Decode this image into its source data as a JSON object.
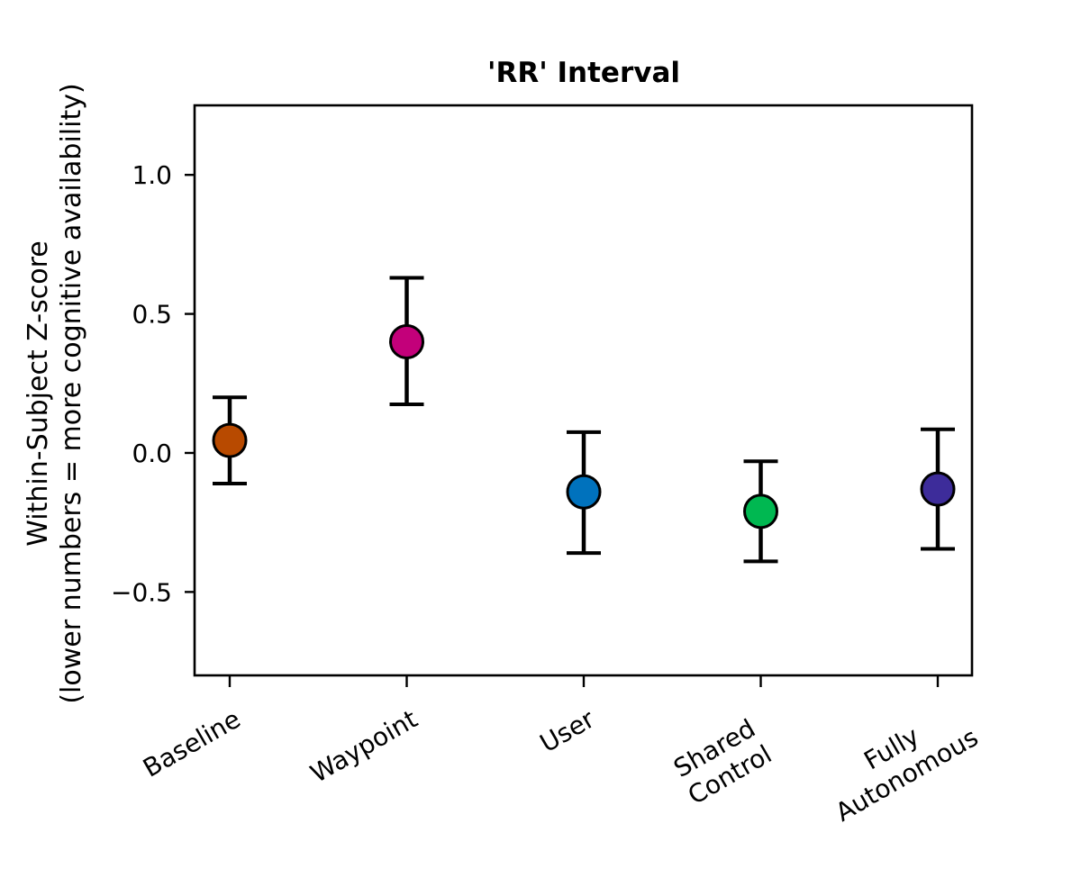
{
  "chart_data": {
    "type": "scatter",
    "title": "'RR' Interval",
    "ylabel_lines": [
      "Within-Subject Z-score",
      "(lower numbers = more cognitive availability)"
    ],
    "xlabel": "",
    "categories": [
      [
        "Baseline"
      ],
      [
        "Waypoint"
      ],
      [
        "User"
      ],
      [
        "Shared",
        "Control"
      ],
      [
        "Fully",
        "Autonomous"
      ]
    ],
    "values": [
      0.045,
      0.4,
      -0.14,
      -0.21,
      -0.13
    ],
    "error_low": [
      -0.11,
      0.175,
      -0.36,
      -0.39,
      -0.345
    ],
    "error_high": [
      0.2,
      0.63,
      0.075,
      -0.03,
      0.085
    ],
    "colors": [
      "#b84a00",
      "#c3007a",
      "#0072bd",
      "#00b851",
      "#3d2c9a"
    ],
    "yticks": [
      1.0,
      0.5,
      0.0,
      -0.5
    ],
    "ytick_labels": [
      "1.0",
      "0.5",
      "0.0",
      "−0.5"
    ],
    "ylim": [
      -0.8,
      1.25
    ],
    "grid": false,
    "legend": "none"
  }
}
